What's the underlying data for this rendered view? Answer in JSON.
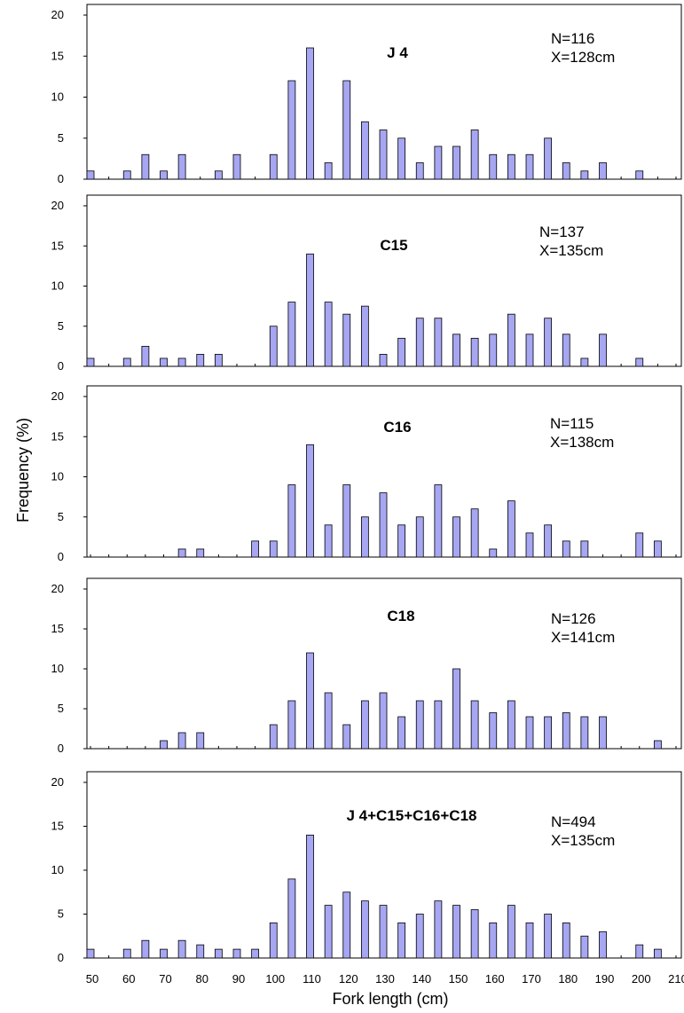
{
  "figure": {
    "ylabel": "Frequency (%)",
    "xlabel": "Fork length (cm)",
    "x_tick_labels": [
      "50",
      "60",
      "70",
      "80",
      "90",
      "100",
      "110",
      "120",
      "130",
      "140",
      "150",
      "160",
      "170",
      "180",
      "190",
      "200",
      "210"
    ],
    "y_tick_labels": [
      "0",
      "5",
      "10",
      "15",
      "20"
    ],
    "bar_color": "#a6a6f2",
    "bar_edge_color": "#000000"
  },
  "chart_data": [
    {
      "type": "bar",
      "title": "J 4",
      "annotation_n": "N=116",
      "annotation_x": "X=128cm",
      "ylim": [
        0,
        20
      ],
      "x_range": [
        50,
        210
      ],
      "x": [
        50,
        60,
        65,
        70,
        75,
        85,
        90,
        100,
        105,
        110,
        115,
        120,
        125,
        130,
        135,
        140,
        145,
        150,
        155,
        160,
        165,
        170,
        175,
        180,
        185,
        190,
        200
      ],
      "values": [
        1,
        1,
        3,
        1,
        3,
        1,
        3,
        3,
        12,
        16,
        2,
        12,
        7,
        6,
        5,
        2,
        4,
        4,
        6,
        3,
        3,
        3,
        5,
        2,
        1,
        2,
        1
      ]
    },
    {
      "type": "bar",
      "title": "C15",
      "annotation_n": "N=137",
      "annotation_x": "X=135cm",
      "ylim": [
        0,
        20
      ],
      "x_range": [
        50,
        210
      ],
      "x": [
        50,
        60,
        65,
        70,
        75,
        80,
        85,
        100,
        105,
        110,
        115,
        120,
        125,
        130,
        135,
        140,
        145,
        150,
        155,
        160,
        165,
        170,
        175,
        180,
        185,
        190,
        200
      ],
      "values": [
        1,
        1,
        2.5,
        1,
        1,
        1.5,
        1.5,
        5,
        8,
        14,
        8,
        6.5,
        7.5,
        1.5,
        3.5,
        6,
        6,
        4,
        3.5,
        4,
        6.5,
        4,
        6,
        4,
        1,
        4,
        1
      ]
    },
    {
      "type": "bar",
      "title": "C16",
      "annotation_n": "N=115",
      "annotation_x": "X=138cm",
      "ylim": [
        0,
        20
      ],
      "x_range": [
        50,
        210
      ],
      "x": [
        75,
        80,
        95,
        100,
        105,
        110,
        115,
        120,
        125,
        130,
        135,
        140,
        145,
        150,
        155,
        160,
        165,
        170,
        175,
        180,
        185,
        200,
        205
      ],
      "values": [
        1,
        1,
        2,
        2,
        9,
        14,
        4,
        9,
        5,
        8,
        4,
        5,
        9,
        5,
        6,
        1,
        7,
        3,
        4,
        2,
        2,
        3,
        2
      ]
    },
    {
      "type": "bar",
      "title": "C18",
      "annotation_n": "N=126",
      "annotation_x": "X=141cm",
      "ylim": [
        0,
        20
      ],
      "x_range": [
        50,
        210
      ],
      "x": [
        70,
        75,
        80,
        100,
        105,
        110,
        115,
        120,
        125,
        130,
        135,
        140,
        145,
        150,
        155,
        160,
        165,
        170,
        175,
        180,
        185,
        190,
        205
      ],
      "values": [
        1,
        2,
        2,
        3,
        6,
        12,
        7,
        3,
        6,
        7,
        4,
        6,
        6,
        10,
        6,
        4.5,
        6,
        4,
        4,
        4.5,
        4,
        4,
        1
      ]
    },
    {
      "type": "bar",
      "title": "J 4+C15+C16+C18",
      "annotation_n": "N=494",
      "annotation_x": "X=135cm",
      "ylim": [
        0,
        20
      ],
      "x_range": [
        50,
        210
      ],
      "x": [
        50,
        60,
        65,
        70,
        75,
        80,
        85,
        90,
        95,
        100,
        105,
        110,
        115,
        120,
        125,
        130,
        135,
        140,
        145,
        150,
        155,
        160,
        165,
        170,
        175,
        180,
        185,
        190,
        200,
        205
      ],
      "values": [
        1,
        1,
        2,
        1,
        2,
        1.5,
        1,
        1,
        1,
        4,
        9,
        14,
        6,
        7.5,
        6.5,
        6,
        4,
        5,
        6.5,
        6,
        5.5,
        4,
        6,
        4,
        5,
        4,
        2.5,
        3,
        1.5,
        1
      ]
    }
  ]
}
